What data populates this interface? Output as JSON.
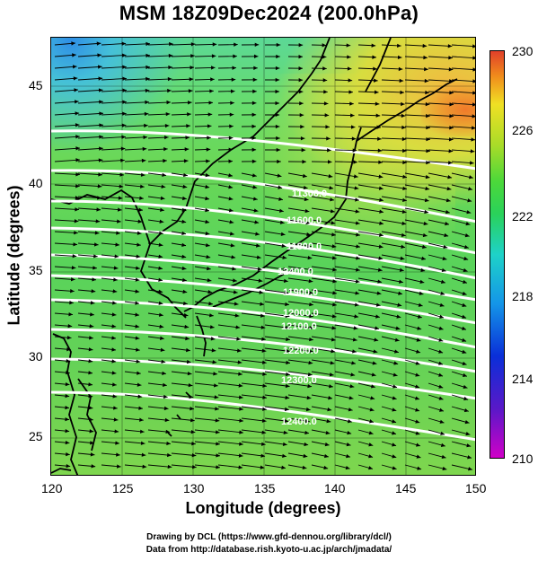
{
  "title": "MSM 18Z09Dec2024 (200.0hPa)",
  "xaxis": {
    "label": "Longitude (degrees)",
    "ticks": [
      "120",
      "125",
      "130",
      "135",
      "140",
      "145",
      "150"
    ],
    "range": [
      120,
      150
    ]
  },
  "yaxis": {
    "label": "Latitude  (degrees)",
    "ticks": [
      "25",
      "30",
      "35",
      "40",
      "45"
    ],
    "range": [
      22.4,
      47.6
    ]
  },
  "colorbar": {
    "labels": [
      "230",
      "226",
      "222",
      "218",
      "214",
      "210"
    ],
    "min": 210,
    "max": 230,
    "colors": [
      "#d000c8",
      "#0a2fd8",
      "#1ed2c8",
      "#2ad25a",
      "#f0e024",
      "#e0402a"
    ]
  },
  "contours": {
    "color": "#ffffff",
    "labels": [
      "11300.0",
      "11600.0",
      "11800.0",
      "12400.0",
      "11900.0",
      "12000.0",
      "12100.0",
      "12200.0",
      "12300.0",
      "12400.0"
    ]
  },
  "wind_vectors": {
    "color": "#000000",
    "description_icon": "arrow-icon"
  },
  "credits": {
    "line1": "Drawing by DCL (https://www.gfd-dennou.org/library/dcl/)",
    "line2": "Data from http://database.rish.kyoto-u.ac.jp/arch/jmadata/"
  }
}
